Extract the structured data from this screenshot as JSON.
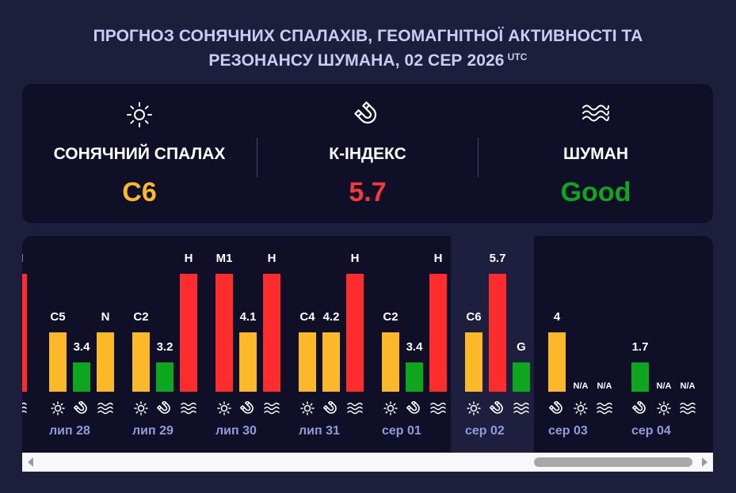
{
  "title": {
    "line1": "ПРОГНОЗ СОНЯЧНИХ СПАЛАХІВ, ГЕОМАГНІТНОЇ АКТИВНОСТІ ТА",
    "line2": "РЕЗОНАНСУ ШУМАНА, 02 СЕР 2026",
    "tz": "UTC"
  },
  "colors": {
    "yellow": "#fbb828",
    "red": "#fd2d2d",
    "green": "#0ea61e"
  },
  "summary": {
    "flare": {
      "label": "СОНЯЧНИЙ СПАЛАХ",
      "value": "C6",
      "icon": "sun-icon",
      "color": "#fbb828"
    },
    "kindex": {
      "label": "К-ІНДЕКС",
      "value": "5.7",
      "icon": "magnet-icon",
      "color": "#f23a3a"
    },
    "schumann": {
      "label": "ШУМАН",
      "value": "Good",
      "icon": "waves-icon",
      "color": "#0ea61e"
    }
  },
  "days": [
    {
      "date": "лип 28",
      "current": false,
      "bars": [
        {
          "kind": "flare",
          "label": "C5",
          "level": 0.5,
          "color": "yellow"
        },
        {
          "kind": "kindex",
          "label": "3.4",
          "level": 0.25,
          "color": "green"
        },
        {
          "kind": "schumann",
          "label": "N",
          "level": 0.5,
          "color": "yellow"
        }
      ]
    },
    {
      "date": "лип 29",
      "current": false,
      "bars": [
        {
          "kind": "flare",
          "label": "C2",
          "level": 0.5,
          "color": "yellow"
        },
        {
          "kind": "kindex",
          "label": "3.2",
          "level": 0.25,
          "color": "green"
        },
        {
          "kind": "schumann",
          "label": "H",
          "level": 1,
          "color": "red"
        }
      ]
    },
    {
      "date": "лип 30",
      "current": false,
      "bars": [
        {
          "kind": "flare",
          "label": "M1",
          "level": 1,
          "color": "red"
        },
        {
          "kind": "kindex",
          "label": "4.1",
          "level": 0.5,
          "color": "yellow"
        },
        {
          "kind": "schumann",
          "label": "H",
          "level": 1,
          "color": "red"
        }
      ]
    },
    {
      "date": "лип 31",
      "current": false,
      "bars": [
        {
          "kind": "flare",
          "label": "C4",
          "level": 0.5,
          "color": "yellow"
        },
        {
          "kind": "kindex",
          "label": "4.2",
          "level": 0.5,
          "color": "yellow"
        },
        {
          "kind": "schumann",
          "label": "H",
          "level": 1,
          "color": "red"
        }
      ]
    },
    {
      "date": "сер 01",
      "current": false,
      "bars": [
        {
          "kind": "flare",
          "label": "C2",
          "level": 0.5,
          "color": "yellow"
        },
        {
          "kind": "kindex",
          "label": "3.4",
          "level": 0.25,
          "color": "green"
        },
        {
          "kind": "schumann",
          "label": "H",
          "level": 1,
          "color": "red"
        }
      ]
    },
    {
      "date": "сер 02",
      "current": true,
      "bars": [
        {
          "kind": "flare",
          "label": "C6",
          "level": 0.5,
          "color": "yellow"
        },
        {
          "kind": "kindex",
          "label": "5.7",
          "level": 1,
          "color": "red"
        },
        {
          "kind": "schumann",
          "label": "G",
          "level": 0.25,
          "color": "green"
        }
      ]
    },
    {
      "date": "сер 03",
      "current": false,
      "bars": [
        {
          "kind": "kindex",
          "label": "4",
          "level": 0.5,
          "color": "yellow"
        },
        {
          "kind": "flare",
          "label": "N/A",
          "level": 0,
          "color": "yellow"
        },
        {
          "kind": "schumann",
          "label": "N/A",
          "level": 0,
          "color": "yellow"
        }
      ]
    },
    {
      "date": "сер 04",
      "current": false,
      "bars": [
        {
          "kind": "kindex",
          "label": "1.7",
          "level": 0.25,
          "color": "green"
        },
        {
          "kind": "flare",
          "label": "N/A",
          "level": 0,
          "color": "yellow"
        },
        {
          "kind": "schumann",
          "label": "N/A",
          "level": 0,
          "color": "yellow"
        }
      ]
    }
  ]
}
